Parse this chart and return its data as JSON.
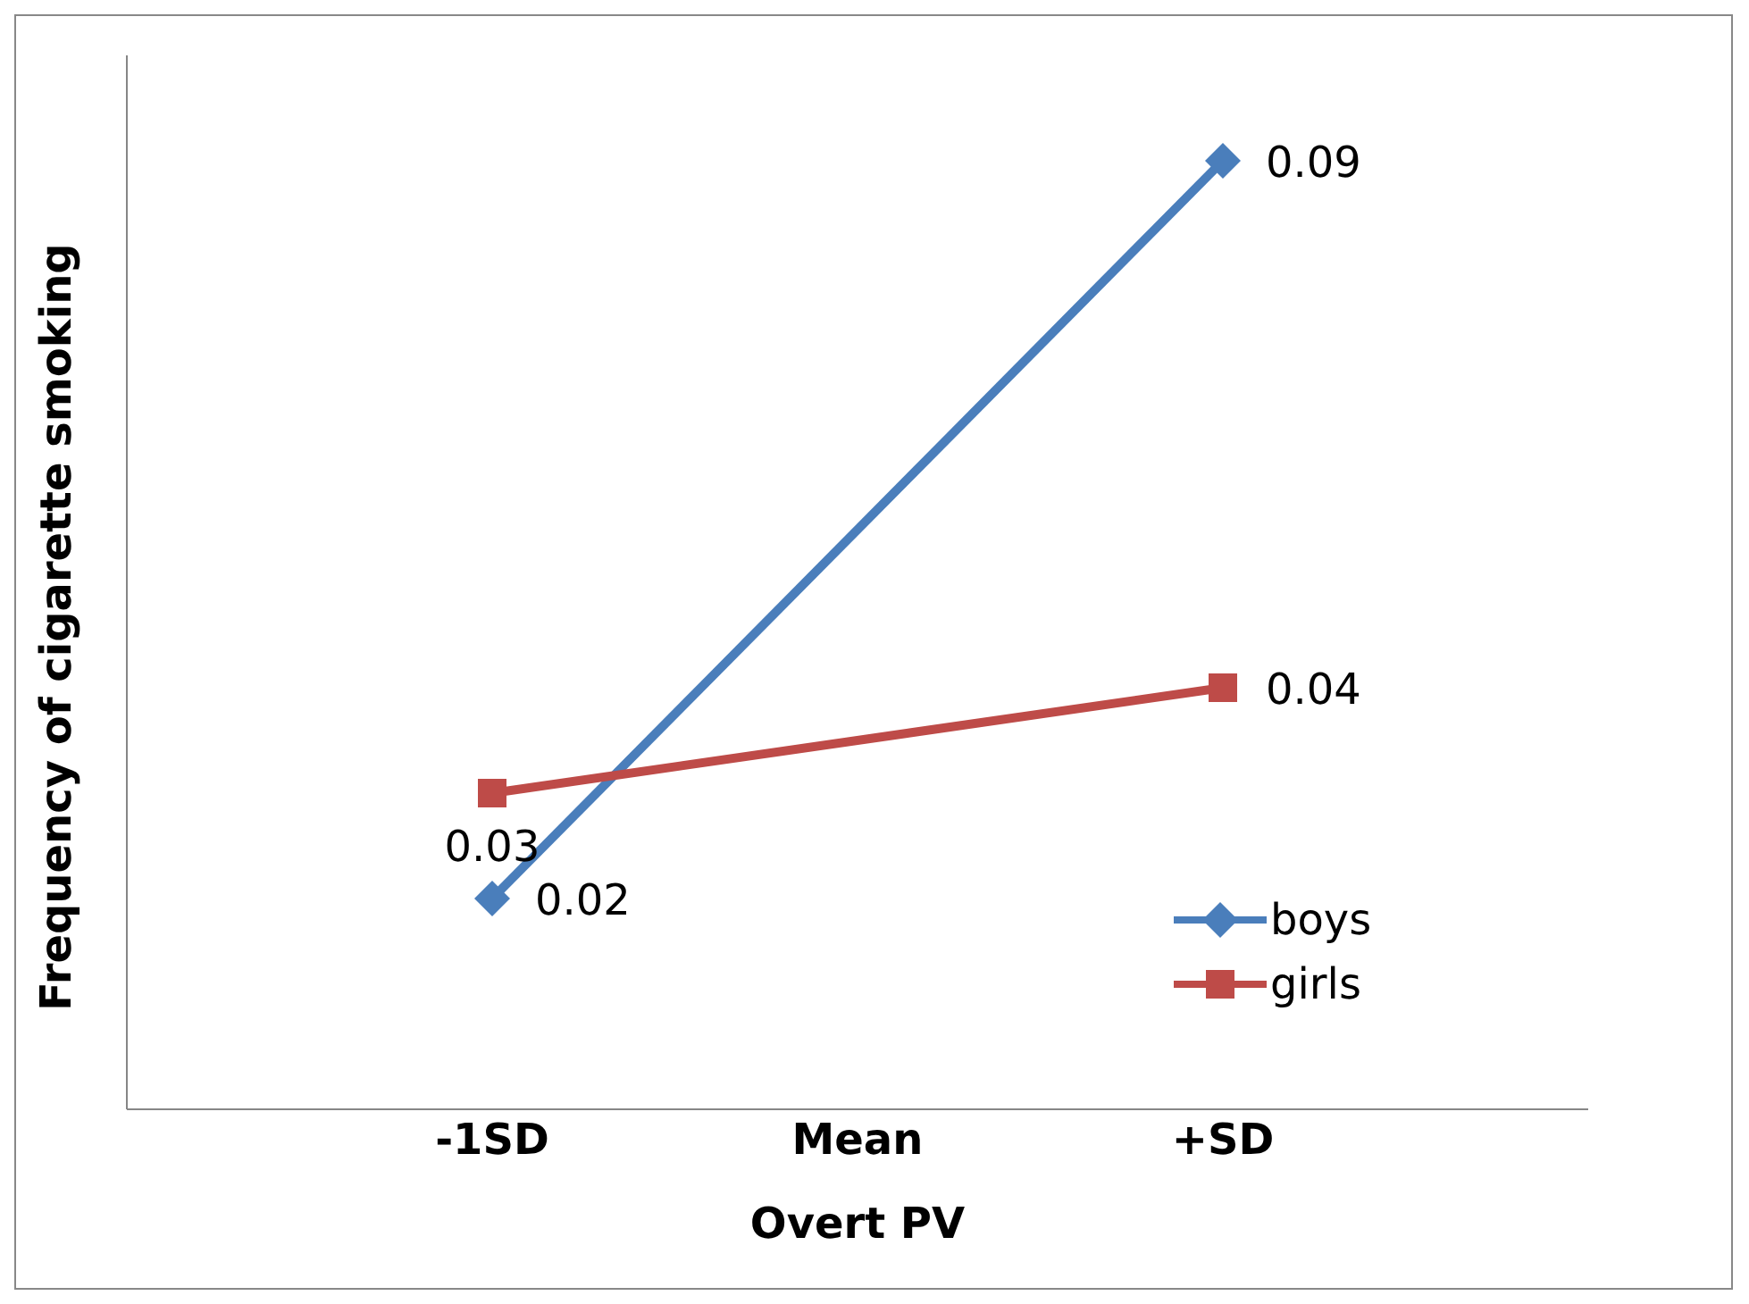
{
  "chart_data": {
    "type": "line",
    "xlabel": "Overt PV",
    "ylabel": "Frequency of cigarette smoking",
    "categories": [
      "-1SD",
      "Mean",
      "+SD"
    ],
    "series": [
      {
        "name": "boys",
        "color": "#4a7ebb",
        "values": [
          0.02,
          null,
          0.09
        ],
        "marker": "diamond"
      },
      {
        "name": "girls",
        "color": "#be4b48",
        "values": [
          0.03,
          null,
          0.04
        ],
        "marker": "square"
      }
    ],
    "ylim": [
      0,
      0.1
    ],
    "tick_labels": "x",
    "data_labels": true,
    "legend": "right",
    "grid": false
  }
}
